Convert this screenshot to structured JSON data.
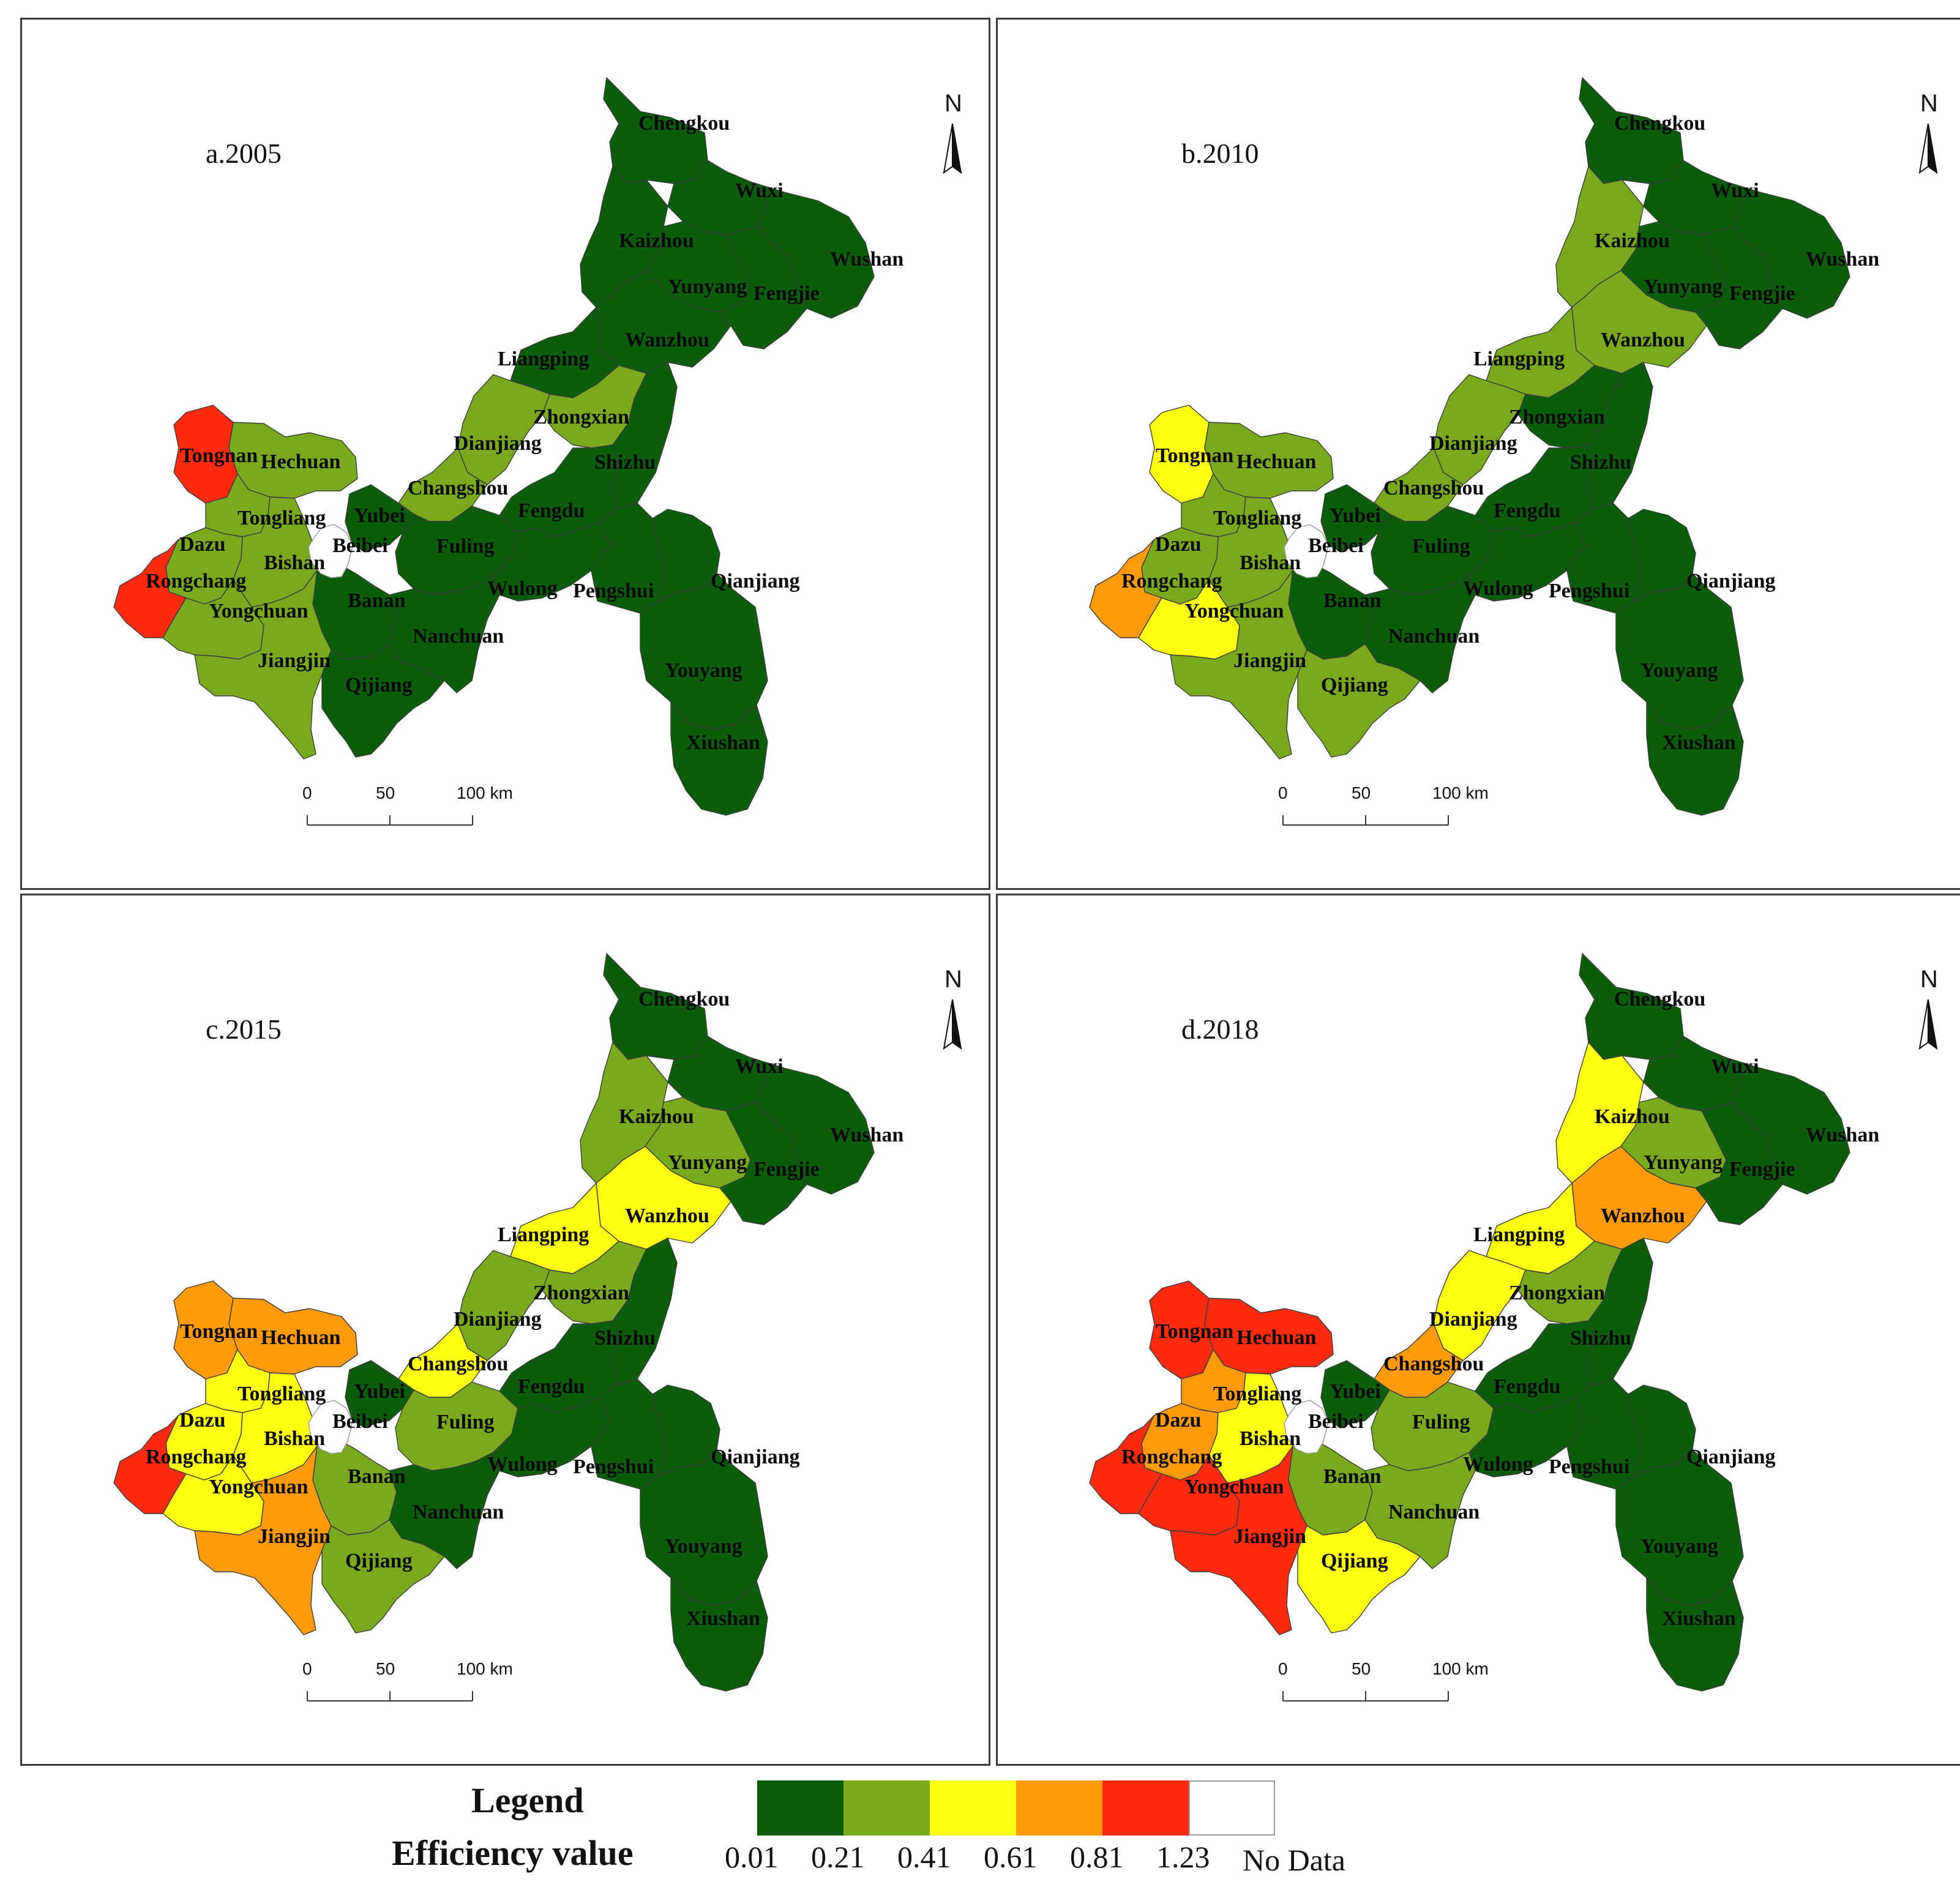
{
  "colors": {
    "c1": "#0b5c0b",
    "c2": "#7aa91e",
    "c3": "#ffff10",
    "c4": "#ff9a0a",
    "c5": "#ff2a12",
    "nodata": "#ffffff"
  },
  "north_label": "N",
  "scale_labels": [
    "0",
    "50",
    "100 km"
  ],
  "panels": [
    {
      "title": "a.2005",
      "values": {
        "Chengkou": "c1",
        "Wuxi": "c1",
        "Wushan": "c1",
        "Kaizhou": "c1",
        "Yunyang": "c1",
        "Fengjie": "c1",
        "Wanzhou": "c1",
        "Liangping": "c1",
        "Zhongxian": "c2",
        "Dianjiang": "c2",
        "Shizhu": "c1",
        "Tongnan": "c5",
        "Hechuan": "c2",
        "Changshou": "c2",
        "Tongliang": "c2",
        "Yubei": "c1",
        "Fengdu": "c1",
        "Dazu": "c2",
        "Beibei": "c1",
        "Fuling": "c1",
        "Bishan": "c2",
        "Rongchang": "c5",
        "Wulong": "c1",
        "Pengshui": "c1",
        "Qianjiang": "c1",
        "Yongchuan": "c2",
        "Banan": "c1",
        "Nanchuan": "c1",
        "Jiangjin": "c2",
        "Youyang": "c1",
        "Qijiang": "c1",
        "Xiushan": "c1"
      }
    },
    {
      "title": "b.2010",
      "values": {
        "Chengkou": "c1",
        "Wuxi": "c1",
        "Wushan": "c1",
        "Kaizhou": "c2",
        "Yunyang": "c1",
        "Fengjie": "c1",
        "Wanzhou": "c2",
        "Liangping": "c2",
        "Zhongxian": "c1",
        "Dianjiang": "c2",
        "Shizhu": "c1",
        "Tongnan": "c3",
        "Hechuan": "c2",
        "Changshou": "c2",
        "Tongliang": "c2",
        "Yubei": "c1",
        "Fengdu": "c1",
        "Dazu": "c2",
        "Beibei": "c1",
        "Fuling": "c1",
        "Bishan": "c2",
        "Rongchang": "c4",
        "Wulong": "c1",
        "Pengshui": "c1",
        "Qianjiang": "c1",
        "Yongchuan": "c3",
        "Banan": "c1",
        "Nanchuan": "c1",
        "Jiangjin": "c2",
        "Youyang": "c1",
        "Qijiang": "c2",
        "Xiushan": "c1"
      }
    },
    {
      "title": "c.2015",
      "values": {
        "Chengkou": "c1",
        "Wuxi": "c1",
        "Wushan": "c1",
        "Kaizhou": "c2",
        "Yunyang": "c2",
        "Fengjie": "c1",
        "Wanzhou": "c3",
        "Liangping": "c3",
        "Zhongxian": "c2",
        "Dianjiang": "c2",
        "Shizhu": "c1",
        "Tongnan": "c4",
        "Hechuan": "c4",
        "Changshou": "c3",
        "Tongliang": "c3",
        "Yubei": "c1",
        "Fengdu": "c1",
        "Dazu": "c3",
        "Beibei": "c1",
        "Fuling": "c2",
        "Bishan": "c3",
        "Rongchang": "c5",
        "Wulong": "c1",
        "Pengshui": "c1",
        "Qianjiang": "c1",
        "Yongchuan": "c3",
        "Banan": "c2",
        "Nanchuan": "c1",
        "Jiangjin": "c4",
        "Youyang": "c1",
        "Qijiang": "c2",
        "Xiushan": "c1"
      }
    },
    {
      "title": "d.2018",
      "values": {
        "Chengkou": "c1",
        "Wuxi": "c1",
        "Wushan": "c1",
        "Kaizhou": "c3",
        "Yunyang": "c2",
        "Fengjie": "c1",
        "Wanzhou": "c4",
        "Liangping": "c3",
        "Zhongxian": "c2",
        "Dianjiang": "c3",
        "Shizhu": "c1",
        "Tongnan": "c5",
        "Hechuan": "c5",
        "Changshou": "c4",
        "Tongliang": "c4",
        "Yubei": "c1",
        "Fengdu": "c1",
        "Dazu": "c4",
        "Beibei": "c1",
        "Fuling": "c2",
        "Bishan": "c3",
        "Rongchang": "c5",
        "Wulong": "c1",
        "Pengshui": "c1",
        "Qianjiang": "c1",
        "Yongchuan": "c5",
        "Banan": "c2",
        "Nanchuan": "c2",
        "Jiangjin": "c5",
        "Youyang": "c1",
        "Qijiang": "c3",
        "Xiushan": "c1"
      }
    }
  ],
  "legend": {
    "title": "Legend",
    "subtitle": "Efficiency value",
    "classes": [
      "c1",
      "c2",
      "c3",
      "c4",
      "c5",
      "nodata"
    ],
    "breaks": [
      "0.01",
      "0.21",
      "0.41",
      "0.61",
      "0.81",
      "1.23"
    ],
    "nodata_label": "No Data"
  }
}
